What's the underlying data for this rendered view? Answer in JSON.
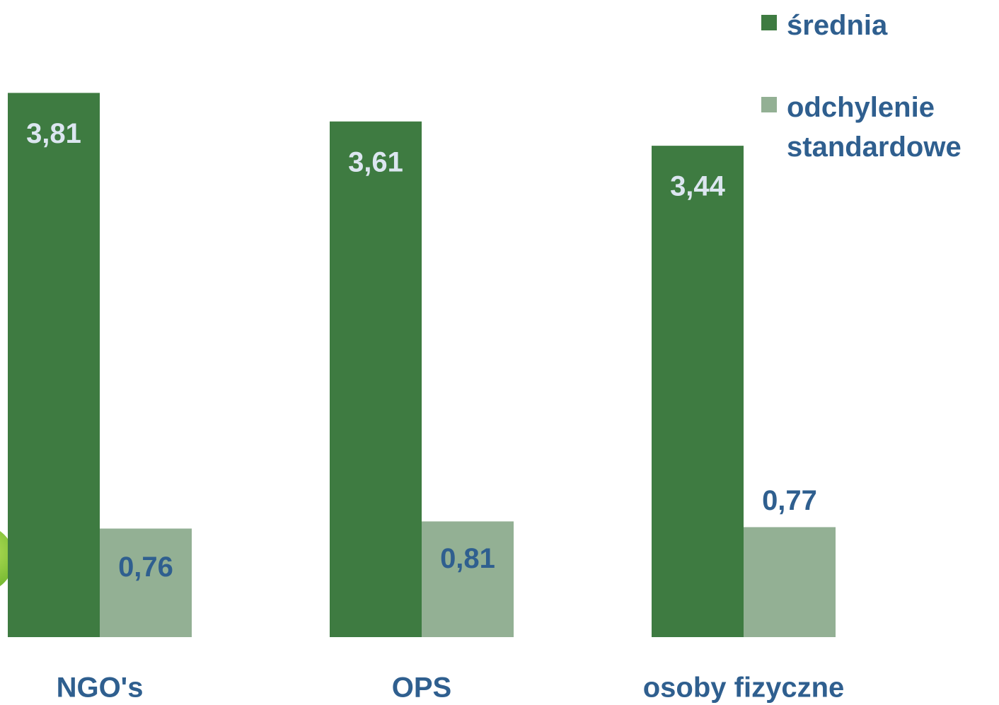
{
  "chart_data": {
    "type": "bar",
    "categories": [
      "NGO's",
      "OPS",
      "osoby fizyczne"
    ],
    "series": [
      {
        "name": "średnia",
        "color": "#3e7b41",
        "values": [
          3.81,
          3.61,
          3.44
        ],
        "value_labels": [
          "3,81",
          "3,61",
          "3,44"
        ]
      },
      {
        "name": "odchylenie standardowe",
        "color": "#93b094",
        "values": [
          0.76,
          0.81,
          0.77
        ],
        "value_labels": [
          "0,76",
          "0,81",
          "0,77"
        ]
      }
    ],
    "legend": "top-right"
  }
}
